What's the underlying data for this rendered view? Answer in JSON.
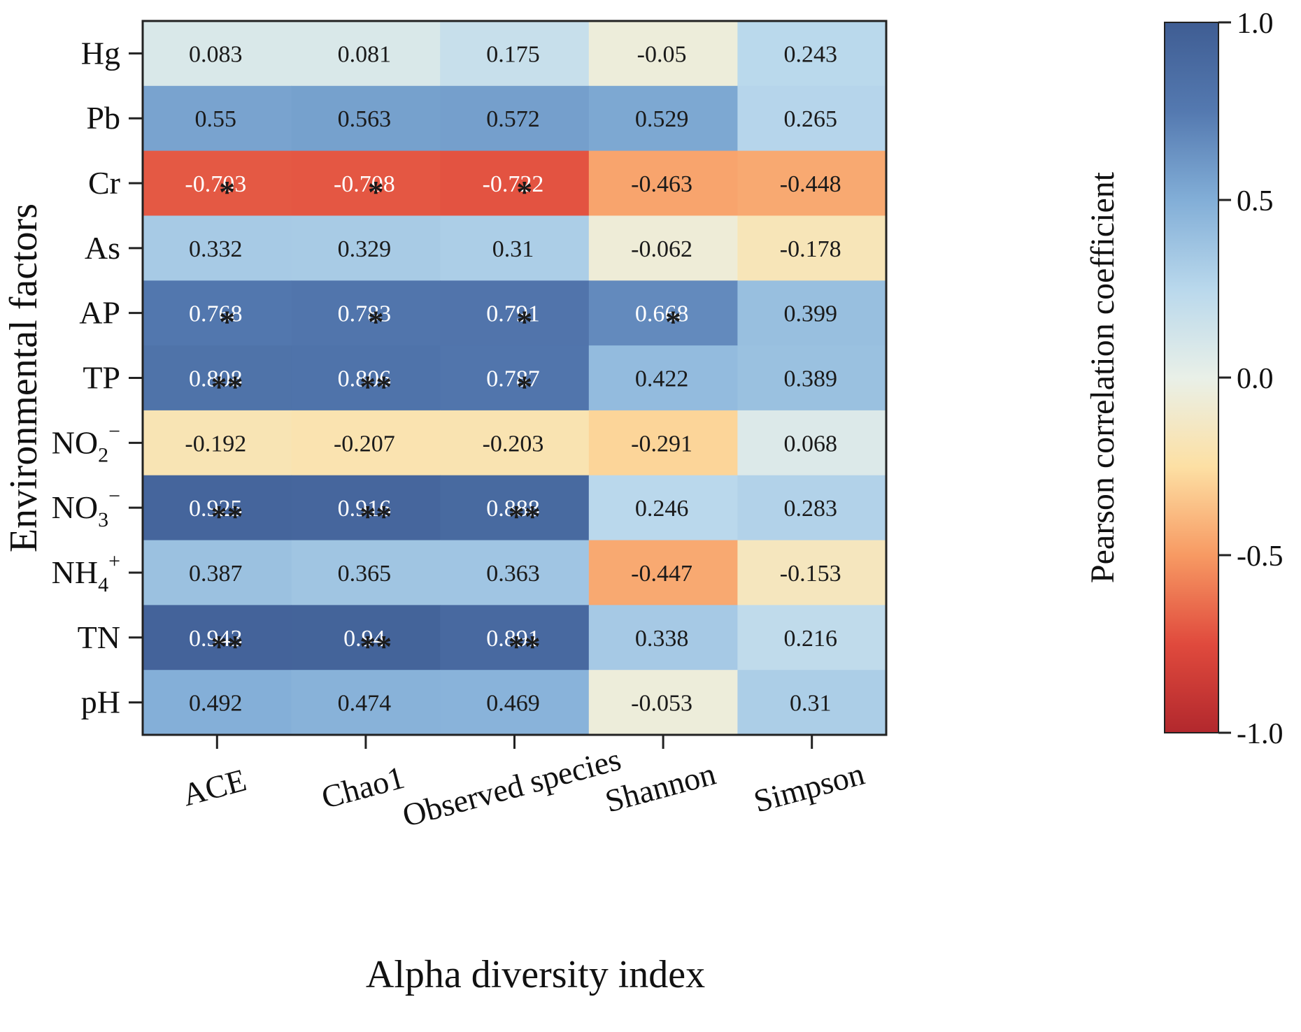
{
  "chart_data": {
    "type": "heatmap",
    "title": "",
    "xlabel": "Alpha diversity index",
    "ylabel": "Environmental factors",
    "columns": [
      "ACE",
      "Chao1",
      "Observed species",
      "Shannon",
      "Simpson"
    ],
    "rows": [
      {
        "base": "Hg",
        "sub": "",
        "sup": ""
      },
      {
        "base": "Pb",
        "sub": "",
        "sup": ""
      },
      {
        "base": "Cr",
        "sub": "",
        "sup": ""
      },
      {
        "base": "As",
        "sub": "",
        "sup": ""
      },
      {
        "base": "AP",
        "sub": "",
        "sup": ""
      },
      {
        "base": "TP",
        "sub": "",
        "sup": ""
      },
      {
        "base": "NO",
        "sub": "2",
        "sup": "−"
      },
      {
        "base": "NO",
        "sub": "3",
        "sup": "−"
      },
      {
        "base": "NH",
        "sub": "4",
        "sup": "+"
      },
      {
        "base": "TN",
        "sub": "",
        "sup": ""
      },
      {
        "base": "pH",
        "sub": "",
        "sup": ""
      }
    ],
    "values": [
      [
        0.083,
        0.081,
        0.175,
        -0.05,
        0.243
      ],
      [
        0.55,
        0.563,
        0.572,
        0.529,
        0.265
      ],
      [
        -0.703,
        -0.708,
        -0.722,
        -0.463,
        -0.448
      ],
      [
        0.332,
        0.329,
        0.31,
        -0.062,
        -0.178
      ],
      [
        0.768,
        0.783,
        0.791,
        0.668,
        0.399
      ],
      [
        0.808,
        0.806,
        0.787,
        0.422,
        0.389
      ],
      [
        -0.192,
        -0.207,
        -0.203,
        -0.291,
        0.068
      ],
      [
        0.925,
        0.916,
        0.888,
        0.246,
        0.283
      ],
      [
        0.387,
        0.365,
        0.363,
        -0.447,
        -0.153
      ],
      [
        0.943,
        0.94,
        0.891,
        0.338,
        0.216
      ],
      [
        0.492,
        0.474,
        0.469,
        -0.053,
        0.31
      ]
    ],
    "significance": [
      [
        "",
        "",
        "",
        "",
        ""
      ],
      [
        "",
        "",
        "",
        "",
        ""
      ],
      [
        "*",
        "*",
        "*",
        "",
        ""
      ],
      [
        "",
        "",
        "",
        "",
        ""
      ],
      [
        "*",
        "*",
        "*",
        "*",
        ""
      ],
      [
        "**",
        "**",
        "*",
        "",
        ""
      ],
      [
        "",
        "",
        "",
        "",
        ""
      ],
      [
        "**",
        "**",
        "**",
        "",
        ""
      ],
      [
        "",
        "",
        "",
        "",
        ""
      ],
      [
        "**",
        "**",
        "**",
        "",
        ""
      ],
      [
        "",
        "",
        "",
        "",
        ""
      ]
    ],
    "value_range": [
      -1.0,
      1.0
    ],
    "colorbar": {
      "label": "Pearson correlation coefficient",
      "ticks": [
        1.0,
        0.5,
        0.0,
        -0.5,
        -1.0
      ],
      "tick_labels": [
        "1.0",
        "0.5",
        "0.0",
        "-0.5",
        "-1.0"
      ]
    },
    "colormap": [
      "#b2282d",
      "#e04a3d",
      "#f79a63",
      "#fde0a4",
      "#e9f0e8",
      "#b9d8ec",
      "#82aed7",
      "#5479b0",
      "#3f5d93"
    ]
  }
}
